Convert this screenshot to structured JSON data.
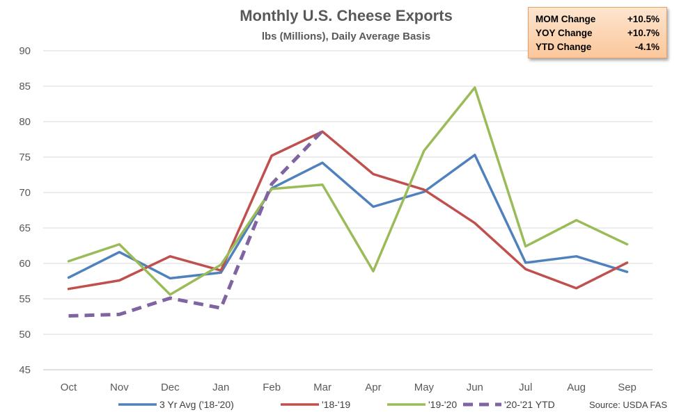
{
  "chart_data": {
    "type": "line",
    "title": "Monthly U.S. Cheese Exports",
    "subtitle": "lbs (Millions), Daily Average Basis",
    "categories": [
      "Oct",
      "Nov",
      "Dec",
      "Jan",
      "Feb",
      "Mar",
      "Apr",
      "May",
      "Jun",
      "Jul",
      "Aug",
      "Sep"
    ],
    "ylim": [
      45,
      90
    ],
    "yticks": [
      45,
      50,
      55,
      60,
      65,
      70,
      75,
      80,
      85,
      90
    ],
    "grid": true,
    "legend_position": "bottom",
    "series": [
      {
        "name": "3 Yr Avg ('18-'20)",
        "color": "#4f81bd",
        "dashed": false,
        "values": [
          58.0,
          61.6,
          57.9,
          58.7,
          70.6,
          74.2,
          68.0,
          70.1,
          75.3,
          60.1,
          61.0,
          58.8
        ]
      },
      {
        "name": "'18-'19",
        "color": "#c0504d",
        "dashed": false,
        "values": [
          56.4,
          57.6,
          61.0,
          59.0,
          75.2,
          78.6,
          72.6,
          70.4,
          65.7,
          59.2,
          56.5,
          60.1
        ]
      },
      {
        "name": "'19-'20",
        "color": "#9bbb59",
        "dashed": false,
        "values": [
          60.3,
          62.7,
          55.6,
          59.8,
          70.5,
          71.1,
          58.9,
          75.9,
          84.8,
          62.4,
          66.1,
          62.7
        ]
      },
      {
        "name": "'20-'21 YTD",
        "color": "#8064a2",
        "dashed": true,
        "values": [
          52.6,
          52.8,
          55.1,
          53.7,
          71.2,
          78.7,
          null,
          null,
          null,
          null,
          null,
          null
        ]
      }
    ],
    "source": "Source: USDA FAS"
  },
  "stats": [
    {
      "label": "MOM Change",
      "value": "+10.5%"
    },
    {
      "label": "YOY Change",
      "value": "+10.7%"
    },
    {
      "label": "YTD Change",
      "value": "-4.1%"
    }
  ]
}
